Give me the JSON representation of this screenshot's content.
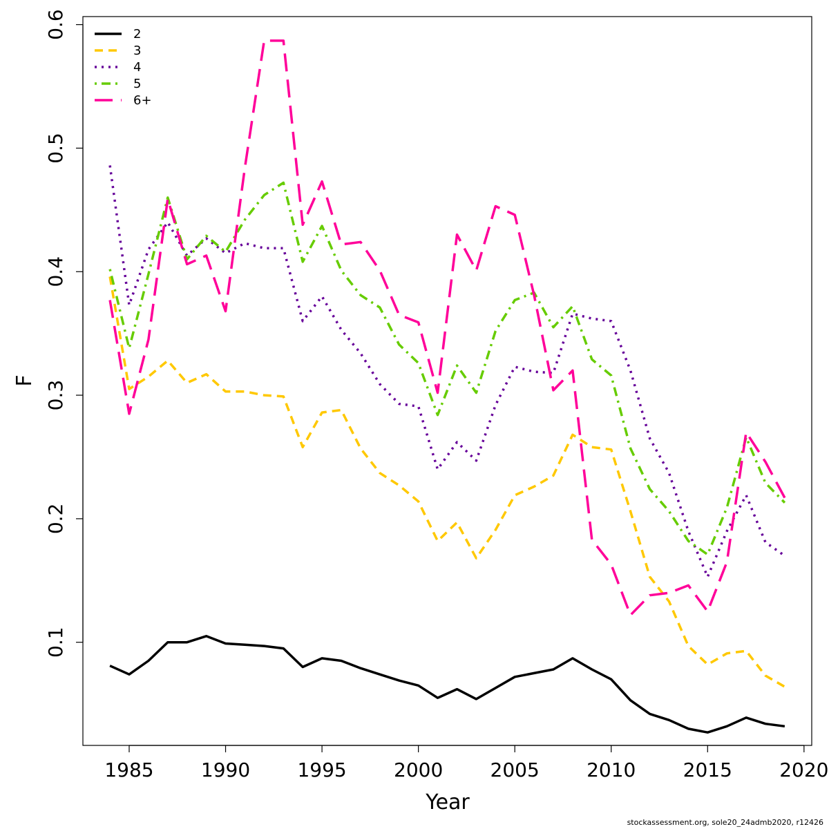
{
  "chart_data": {
    "type": "line",
    "title": "",
    "xlabel": "Year",
    "ylabel": "F",
    "xlim": [
      1982.6,
      2020.4
    ],
    "ylim": [
      0.0165,
      0.6065
    ],
    "x_ticks": [
      1985,
      1990,
      1995,
      2000,
      2005,
      2010,
      2015,
      2020
    ],
    "y_ticks": [
      0.1,
      0.2,
      0.3,
      0.4,
      0.5,
      0.6
    ],
    "x_tick_labels": [
      "1985",
      "1990",
      "1995",
      "2000",
      "2005",
      "2010",
      "2015",
      "2020"
    ],
    "y_tick_labels": [
      "0.1",
      "0.2",
      "0.3",
      "0.4",
      "0.5",
      "0.6"
    ],
    "grid": false,
    "legend_position": "top-left",
    "x": [
      1984,
      1985,
      1986,
      1987,
      1988,
      1989,
      1990,
      1991,
      1992,
      1993,
      1994,
      1995,
      1996,
      1997,
      1998,
      1999,
      2000,
      2001,
      2002,
      2003,
      2004,
      2005,
      2006,
      2007,
      2008,
      2009,
      2010,
      2011,
      2012,
      2013,
      2014,
      2015,
      2016,
      2017,
      2018,
      2019
    ],
    "series": [
      {
        "name": "2",
        "color": "#000000",
        "style": "solid",
        "values": [
          0.081,
          0.074,
          0.085,
          0.1,
          0.1,
          0.105,
          0.099,
          0.098,
          0.097,
          0.095,
          0.08,
          0.087,
          0.085,
          0.079,
          0.074,
          0.069,
          0.065,
          0.055,
          0.062,
          0.054,
          0.063,
          0.072,
          0.075,
          0.078,
          0.087,
          0.078,
          0.07,
          0.053,
          0.042,
          0.037,
          0.03,
          0.027,
          0.032,
          0.039,
          0.034,
          0.032
        ]
      },
      {
        "name": "3",
        "color": "#FFC800",
        "style": "dashed",
        "values": [
          0.396,
          0.305,
          0.315,
          0.328,
          0.31,
          0.317,
          0.303,
          0.303,
          0.3,
          0.299,
          0.258,
          0.286,
          0.288,
          0.257,
          0.237,
          0.227,
          0.214,
          0.182,
          0.197,
          0.168,
          0.191,
          0.219,
          0.226,
          0.235,
          0.268,
          0.258,
          0.256,
          0.206,
          0.153,
          0.133,
          0.097,
          0.082,
          0.091,
          0.093,
          0.073,
          0.064
        ]
      },
      {
        "name": "4",
        "color": "#660099",
        "style": "dotted",
        "values": [
          0.486,
          0.373,
          0.418,
          0.44,
          0.413,
          0.427,
          0.415,
          0.423,
          0.419,
          0.419,
          0.36,
          0.38,
          0.353,
          0.334,
          0.309,
          0.293,
          0.291,
          0.24,
          0.262,
          0.247,
          0.292,
          0.323,
          0.319,
          0.318,
          0.366,
          0.362,
          0.36,
          0.32,
          0.265,
          0.237,
          0.19,
          0.153,
          0.19,
          0.219,
          0.181,
          0.17
        ]
      },
      {
        "name": "5",
        "color": "#66CC00",
        "style": "dotdash",
        "values": [
          0.402,
          0.338,
          0.398,
          0.46,
          0.41,
          0.429,
          0.416,
          0.442,
          0.462,
          0.472,
          0.408,
          0.437,
          0.401,
          0.381,
          0.371,
          0.341,
          0.326,
          0.284,
          0.324,
          0.302,
          0.352,
          0.377,
          0.383,
          0.355,
          0.372,
          0.329,
          0.316,
          0.257,
          0.224,
          0.206,
          0.182,
          0.171,
          0.209,
          0.266,
          0.229,
          0.213
        ]
      },
      {
        "name": "6+",
        "color": "#FF0099",
        "style": "longdash",
        "values": [
          0.377,
          0.285,
          0.345,
          0.459,
          0.406,
          0.413,
          0.368,
          0.484,
          0.587,
          0.587,
          0.438,
          0.473,
          0.422,
          0.424,
          0.401,
          0.365,
          0.359,
          0.302,
          0.43,
          0.401,
          0.453,
          0.446,
          0.381,
          0.304,
          0.32,
          0.183,
          0.163,
          0.122,
          0.138,
          0.14,
          0.146,
          0.125,
          0.165,
          0.27,
          0.246,
          0.217
        ]
      }
    ]
  },
  "footer": "stockassessment.org, sole20_24admb2020, r12426"
}
